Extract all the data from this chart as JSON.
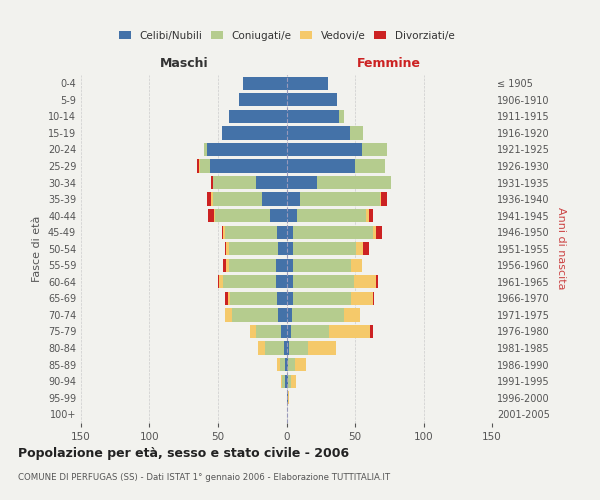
{
  "age_groups": [
    "0-4",
    "5-9",
    "10-14",
    "15-19",
    "20-24",
    "25-29",
    "30-34",
    "35-39",
    "40-44",
    "45-49",
    "50-54",
    "55-59",
    "60-64",
    "65-69",
    "70-74",
    "75-79",
    "80-84",
    "85-89",
    "90-94",
    "95-99",
    "100+"
  ],
  "birth_years": [
    "2001-2005",
    "1996-2000",
    "1991-1995",
    "1986-1990",
    "1981-1985",
    "1976-1980",
    "1971-1975",
    "1966-1970",
    "1961-1965",
    "1956-1960",
    "1951-1955",
    "1946-1950",
    "1941-1945",
    "1936-1940",
    "1931-1935",
    "1926-1930",
    "1921-1925",
    "1916-1920",
    "1911-1915",
    "1906-1910",
    "≤ 1905"
  ],
  "male_celibe": [
    32,
    35,
    42,
    47,
    58,
    56,
    22,
    18,
    12,
    7,
    6,
    8,
    8,
    7,
    6,
    4,
    2,
    1,
    1,
    0,
    0
  ],
  "male_coniugato": [
    0,
    0,
    0,
    0,
    2,
    7,
    32,
    36,
    40,
    38,
    36,
    34,
    38,
    34,
    34,
    18,
    14,
    4,
    2,
    0,
    0
  ],
  "male_vedovo": [
    0,
    0,
    0,
    0,
    0,
    1,
    0,
    1,
    1,
    1,
    2,
    2,
    3,
    2,
    5,
    5,
    5,
    2,
    1,
    0,
    0
  ],
  "male_divorziato": [
    0,
    0,
    0,
    0,
    0,
    1,
    1,
    3,
    4,
    1,
    1,
    2,
    1,
    2,
    0,
    0,
    0,
    0,
    0,
    0,
    0
  ],
  "female_nubile": [
    30,
    37,
    38,
    46,
    55,
    50,
    22,
    10,
    8,
    5,
    5,
    5,
    5,
    5,
    4,
    3,
    2,
    1,
    1,
    1,
    0
  ],
  "female_coniugata": [
    0,
    0,
    4,
    10,
    18,
    22,
    54,
    58,
    50,
    58,
    46,
    42,
    44,
    42,
    38,
    28,
    14,
    5,
    2,
    0,
    0
  ],
  "female_vedova": [
    0,
    0,
    0,
    0,
    0,
    0,
    0,
    1,
    2,
    2,
    5,
    8,
    16,
    16,
    12,
    30,
    20,
    8,
    4,
    1,
    0
  ],
  "female_divorziata": [
    0,
    0,
    0,
    0,
    0,
    0,
    0,
    4,
    3,
    5,
    4,
    0,
    2,
    1,
    0,
    2,
    0,
    0,
    0,
    0,
    0
  ],
  "color_celibe": "#4472a8",
  "color_coniugato": "#b5cc8e",
  "color_vedovo": "#f5c96a",
  "color_divorziato": "#cc2222",
  "xlim": 150,
  "title": "Popolazione per età, sesso e stato civile - 2006",
  "subtitle": "COMUNE DI PERFUGAS (SS) - Dati ISTAT 1° gennaio 2006 - Elaborazione TUTTITALIA.IT",
  "ylabel_left": "Fasce di età",
  "ylabel_right": "Anni di nascita",
  "label_maschi": "Maschi",
  "label_femmine": "Femmine",
  "bg_color": "#f2f2ee",
  "legend_labels": [
    "Celibi/Nubili",
    "Coniugati/e",
    "Vedovi/e",
    "Divorziati/e"
  ]
}
